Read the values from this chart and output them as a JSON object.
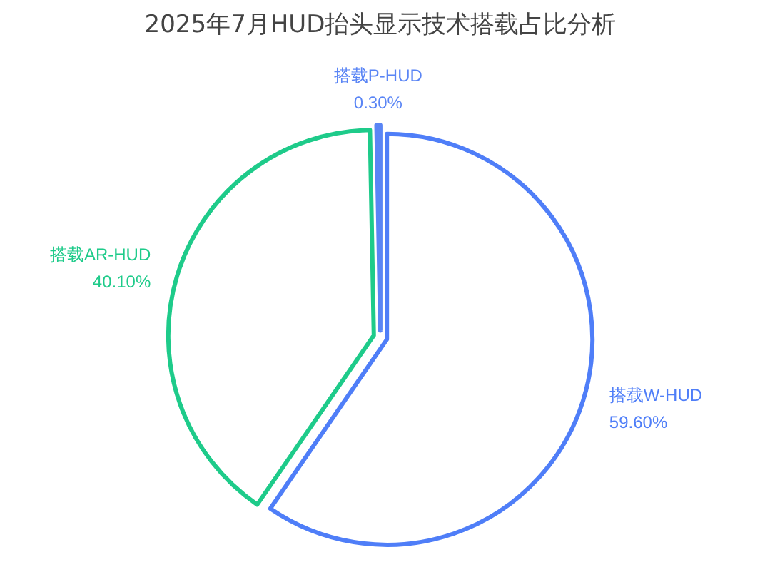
{
  "chart_data": {
    "type": "pie",
    "title": "2025年7月HUD抬头显示技术搭载占比分析",
    "categories": [
      "搭载W-HUD",
      "搭载AR-HUD",
      "搭载P-HUD"
    ],
    "values": [
      59.6,
      40.1,
      0.3
    ],
    "colors": [
      "#4f7ef8",
      "#1ecb8a",
      "#5a85f5"
    ],
    "value_labels": [
      "59.60%",
      "40.10%",
      "0.30%"
    ]
  }
}
